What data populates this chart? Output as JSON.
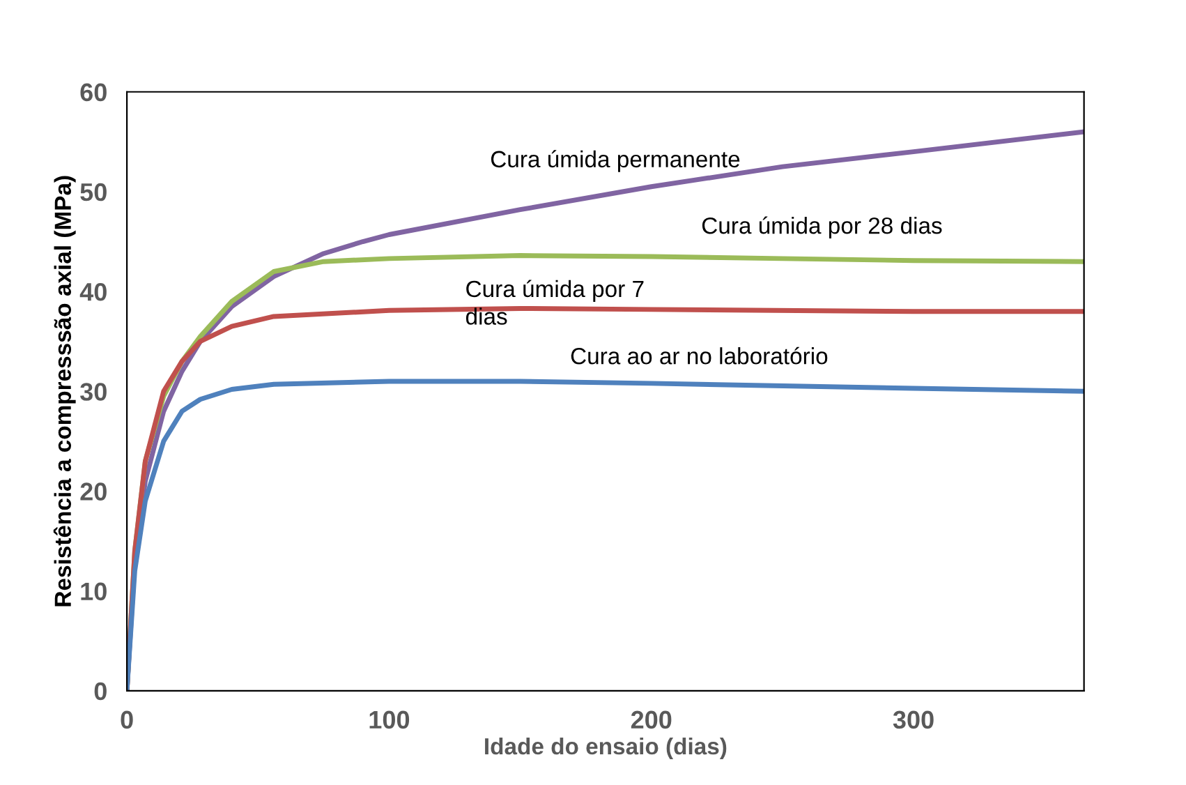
{
  "chart_data": {
    "type": "line",
    "xlabel": "Idade do ensaio (dias)",
    "ylabel": "Resistência a compresssão axial (MPa)",
    "xlim": [
      0,
      365
    ],
    "xticks": [
      0,
      100,
      200,
      300
    ],
    "ylim": [
      0,
      60
    ],
    "yticks": [
      0,
      10,
      20,
      30,
      40,
      50,
      60
    ],
    "grid": false,
    "marker": "none",
    "line_style": "solid",
    "series": [
      {
        "color": "#8064a2",
        "x": [
          0,
          3,
          7,
          14,
          21,
          28,
          40,
          56,
          75,
          90,
          100,
          150,
          200,
          250,
          300,
          365
        ],
        "values": [
          0,
          13,
          21,
          28,
          32,
          35,
          38.5,
          41.5,
          43.8,
          45,
          45.7,
          48.2,
          50.5,
          52.5,
          54,
          56
        ]
      },
      {
        "color": "#9bbb59",
        "x": [
          0,
          3,
          7,
          14,
          21,
          28,
          40,
          56,
          75,
          100,
          150,
          200,
          250,
          300,
          365
        ],
        "values": [
          0,
          14,
          23,
          29.5,
          33,
          35.5,
          39,
          42,
          43,
          43.3,
          43.6,
          43.5,
          43.3,
          43.1,
          43
        ]
      },
      {
        "color": "#c0504d",
        "x": [
          0,
          3,
          7,
          14,
          21,
          28,
          40,
          56,
          100,
          150,
          200,
          300,
          365
        ],
        "values": [
          0,
          14,
          23,
          30,
          33,
          35,
          36.5,
          37.5,
          38.1,
          38.3,
          38.2,
          38,
          38
        ]
      },
      {
        "color": "#4f81bd",
        "x": [
          0,
          3,
          7,
          14,
          21,
          28,
          40,
          56,
          100,
          150,
          200,
          300,
          365
        ],
        "values": [
          0,
          12,
          19,
          25,
          28,
          29.2,
          30.2,
          30.7,
          31,
          31,
          30.8,
          30.3,
          30
        ]
      }
    ],
    "annotations": [
      {
        "text": "Cura úmida permanente",
        "x": 234,
        "y": 51.9
      },
      {
        "text": "Cura úmida por 28 dias",
        "x": 219,
        "y": 43.5
      },
      {
        "text": "Cura úmida por 7\ndias",
        "x": 129,
        "y": 38.3
      },
      {
        "text": "Cura ao ar no laboratório",
        "x": 169,
        "y": 31
      }
    ]
  }
}
